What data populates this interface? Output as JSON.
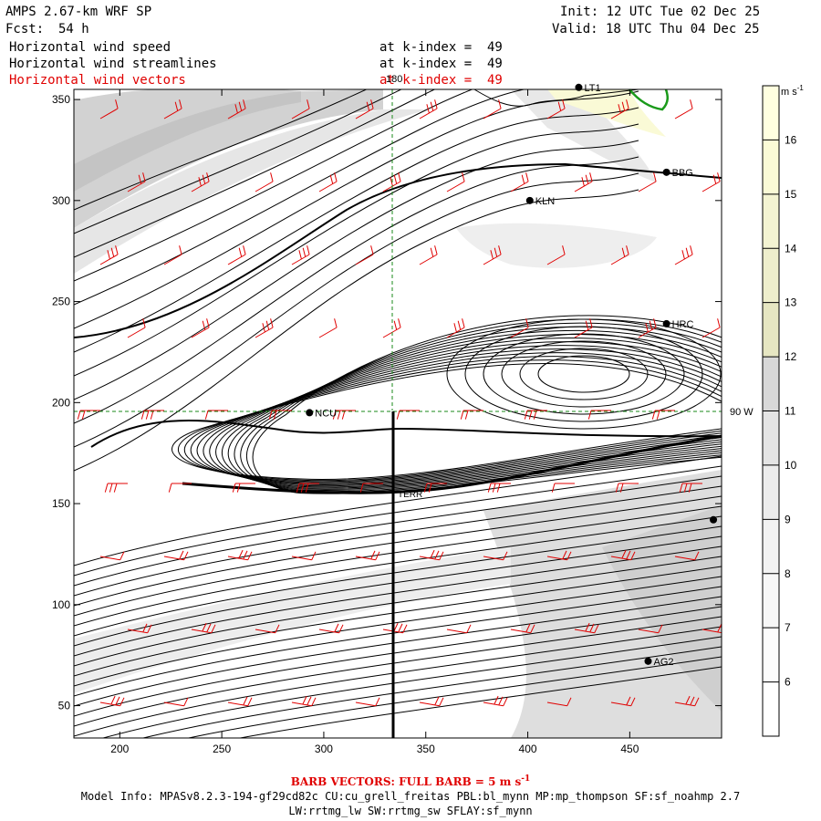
{
  "header": {
    "model_title": "AMPS 2.67-km WRF SP",
    "fcst_label": "Fcst:",
    "fcst_value": "54 h",
    "init_time": "Init: 12 UTC Tue 02 Dec 25",
    "valid_time": "Valid: 18 UTC Thu 04 Dec 25"
  },
  "fields": [
    {
      "name": "Horizontal wind speed",
      "level": "at k-index =  49",
      "color": "#000000"
    },
    {
      "name": "Horizontal wind streamlines",
      "level": "at k-index =  49",
      "color": "#000000"
    },
    {
      "name": "Horizontal wind vectors",
      "level": "at k-index =  49",
      "color": "#e00000"
    }
  ],
  "map": {
    "x_ticks": [
      "200",
      "250",
      "300",
      "350",
      "400",
      "450"
    ],
    "y_ticks": [
      "350",
      "300",
      "250",
      "200",
      "150",
      "100",
      "50"
    ],
    "meridian_label": "180",
    "longitude_label": "90 W",
    "stations": [
      {
        "id": "BBG",
        "x": 468,
        "y": 314
      },
      {
        "id": "KLN",
        "x": 401,
        "y": 300
      },
      {
        "id": "HRC",
        "x": 468,
        "y": 239
      },
      {
        "id": "NCU",
        "x": 293,
        "y": 195
      },
      {
        "id": "AG2",
        "x": 459,
        "y": 72
      },
      {
        "id": "LT1",
        "x": 425,
        "y": 356
      },
      {
        "id": "",
        "x": 491,
        "y": 142
      }
    ],
    "transect_label": "TERR"
  },
  "colorbar": {
    "units": "m s-1",
    "labels": [
      "16",
      "15",
      "14",
      "13",
      "12",
      "11",
      "10",
      "9",
      "8",
      "7",
      "6"
    ],
    "colors": [
      "#ffffe0",
      "#fafad6",
      "#f4f4d2",
      "#eeeecc",
      "#e6e6c2",
      "#d8d8d8",
      "#e4e4e4",
      "#ececec",
      "#f2f2f2",
      "#f7f7f7",
      "#fcfcfc",
      "#ffffff"
    ]
  },
  "footer": {
    "barb_note": "BARB VECTORS:  FULL BARB = 5 m s",
    "barb_sup": "-1",
    "model_info": "Model Info: MPASv8.2.3-194-gf29cd82c CU:cu_grell_freitas PBL:bl_mynn MP:mp_thompson SF:sf_noahmp 2.7",
    "model_info2": "LW:rrtmg_lw SW:rrtmg_sw SFLAY:sf_mynn"
  }
}
